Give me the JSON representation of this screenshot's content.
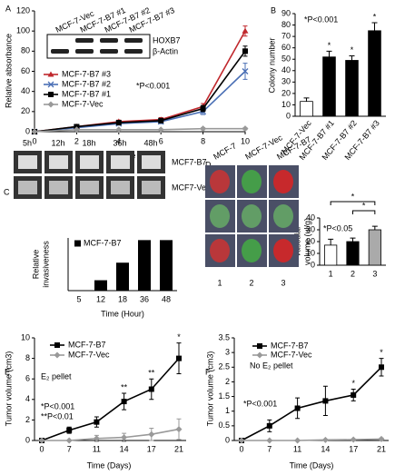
{
  "chart_data": [
    {
      "type": "line",
      "letter": "A",
      "x": [
        0,
        2,
        4,
        6,
        8,
        10
      ],
      "xlim": [
        0,
        10
      ],
      "xticks": [
        0,
        2,
        4,
        6,
        8,
        10
      ],
      "ylim": [
        0,
        120
      ],
      "yticks": [
        0,
        20,
        40,
        60,
        80,
        100,
        120
      ],
      "xlabel": "Time (Days)",
      "ylabel": "Relative absorbance",
      "annotations": [
        "*P<0.001"
      ],
      "series": [
        {
          "name": "MCF-7-B7 #3",
          "color": "#c0282d",
          "marker": "triangle",
          "values": [
            0,
            5,
            10,
            12,
            25,
            100
          ],
          "errors": [
            0,
            1,
            1.5,
            2,
            3,
            5
          ]
        },
        {
          "name": "MCF-7-B7 #2",
          "color": "#4a6fb5",
          "marker": "x",
          "values": [
            0,
            4,
            8,
            10,
            20,
            60
          ],
          "errors": [
            0,
            1,
            1.5,
            2,
            3,
            8
          ]
        },
        {
          "name": "MCF-7-B7 #1",
          "color": "#000000",
          "marker": "square",
          "values": [
            0,
            5,
            9,
            11,
            23,
            80
          ],
          "errors": [
            0,
            1,
            1.5,
            2,
            3,
            5
          ]
        },
        {
          "name": "MCF-7-Vec",
          "color": "#999999",
          "marker": "diamond",
          "values": [
            0,
            2,
            2,
            2,
            3,
            3
          ],
          "errors": [
            0,
            0.5,
            0.5,
            0.5,
            1,
            1
          ]
        }
      ],
      "blot": {
        "lanes": [
          "MCF-7-Vec",
          "MCF-7-B7 #1",
          "MCF-7-B7 #2",
          "MCF-7-B7 #3"
        ],
        "bands": [
          "HOXB7",
          "β-Actin"
        ]
      }
    },
    {
      "type": "bar",
      "letter": "B",
      "categories": [
        "MCF-7-Vec",
        "MCF-7-B7 #1",
        "MCF-7-B7 #2",
        "MCF-7-B7 #3"
      ],
      "values": [
        13,
        52,
        49,
        75
      ],
      "errors": [
        3,
        5,
        4,
        7
      ],
      "colors": [
        "#ffffff",
        "#000000",
        "#000000",
        "#000000"
      ],
      "significance": [
        null,
        "*",
        "*",
        "*"
      ],
      "ylim": [
        0,
        90
      ],
      "yticks": [
        0,
        10,
        20,
        30,
        40,
        50,
        60,
        70,
        80,
        90
      ],
      "ylabel": "Colony number",
      "annotations": [
        "*P<0.001"
      ]
    },
    {
      "type": "bar",
      "letter": "C",
      "categories": [
        "5",
        "12",
        "18",
        "36",
        "48"
      ],
      "series": [
        {
          "name": "MCF-7-B7",
          "color": "#000000",
          "values": [
            0,
            20,
            55,
            100,
            100
          ]
        }
      ],
      "ylim": [
        0,
        105
      ],
      "xlabel": "Time (Hour)",
      "ylabel": [
        "Relative",
        "invasiveness"
      ],
      "images": {
        "columns": [
          "5h",
          "12h",
          "18h",
          "36h",
          "48h"
        ],
        "rows": [
          "MCF7-B7",
          "MCF7-Vec"
        ]
      }
    },
    {
      "type": "bar",
      "letter": "D",
      "categories": [
        "1",
        "2",
        "3"
      ],
      "values": [
        17,
        20,
        30
      ],
      "errors": [
        5,
        3,
        3
      ],
      "colors": [
        "#ffffff",
        "#000000",
        "#aaaaaa"
      ],
      "ylim": [
        0,
        40
      ],
      "yticks": [
        0,
        10,
        20,
        30,
        40
      ],
      "ylabel": [
        "Vascular",
        "volume (ul/g)"
      ],
      "annotations": [
        "*P<0.05"
      ],
      "bracket_labels": [
        "*",
        "*"
      ],
      "images": {
        "columns": [
          "MCF-7",
          "MCF-7-Vec",
          "MCF-7-B7"
        ],
        "numbers": [
          "1",
          "2",
          "3"
        ]
      }
    },
    {
      "type": "line",
      "letter": "E",
      "categories": [
        "0",
        "7",
        "11",
        "14",
        "17",
        "21"
      ],
      "ylim": [
        0,
        10
      ],
      "yticks": [
        0,
        2,
        4,
        6,
        8,
        10
      ],
      "xlabel": "Time (Days)",
      "ylabel": "Tumor volume (cm3)",
      "annotations": [
        "E₂ pellet",
        "*P<0.001",
        "**P<0.01"
      ],
      "significance": [
        null,
        null,
        null,
        "**",
        "**",
        "*"
      ],
      "series": [
        {
          "name": "MCF-7-B7",
          "color": "#000000",
          "marker": "square",
          "values": [
            0,
            1,
            1.8,
            3.8,
            5,
            8
          ],
          "errors": [
            0,
            0.3,
            0.5,
            0.8,
            1,
            1.5
          ]
        },
        {
          "name": "MCF-7-Vec",
          "color": "#999999",
          "marker": "diamond",
          "values": [
            0,
            0,
            0.2,
            0.3,
            0.6,
            1.1
          ],
          "errors": [
            0,
            0,
            0.3,
            0.4,
            0.6,
            1
          ]
        }
      ]
    },
    {
      "type": "line",
      "letter": "F",
      "categories": [
        "0",
        "7",
        "11",
        "14",
        "17",
        "21"
      ],
      "ylim": [
        0,
        3.5
      ],
      "yticks": [
        0,
        0.5,
        1,
        1.5,
        2,
        2.5,
        3,
        3.5
      ],
      "xlabel": "Time (Days)",
      "ylabel": "Tumor volume (cm3)",
      "annotations": [
        "No E₂ pellet",
        "*P<0.001"
      ],
      "significance": [
        null,
        null,
        null,
        null,
        "*",
        "*"
      ],
      "series": [
        {
          "name": "MCF-7-B7",
          "color": "#000000",
          "marker": "square",
          "values": [
            0,
            0.5,
            1.1,
            1.35,
            1.55,
            2.5
          ],
          "errors": [
            0,
            0.2,
            0.35,
            0.5,
            0.2,
            0.3
          ]
        },
        {
          "name": "MCF-7-Vec",
          "color": "#999999",
          "marker": "diamond",
          "values": [
            0,
            0,
            0,
            0.02,
            0.03,
            0.05
          ],
          "errors": [
            0,
            0,
            0,
            0.02,
            0.02,
            0.03
          ]
        }
      ]
    }
  ]
}
